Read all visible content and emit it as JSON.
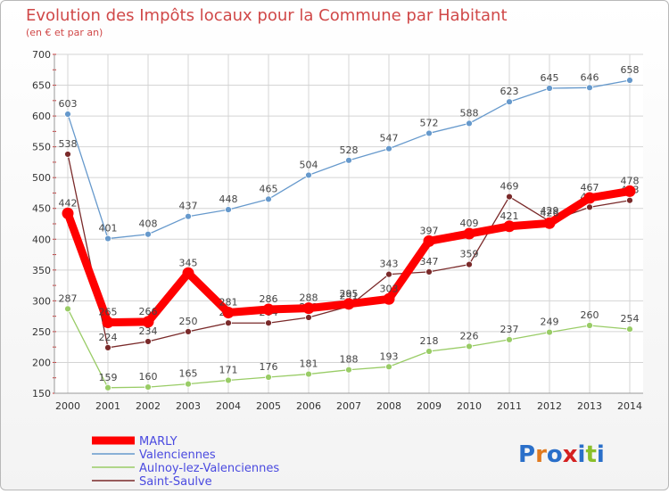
{
  "title": "Evolution des Impôts locaux pour la Commune par Habitant",
  "subtitle": "(en € et par an)",
  "logo_text": "Proxiti",
  "chart_data": {
    "type": "line",
    "x": [
      2000,
      2001,
      2002,
      2003,
      2004,
      2005,
      2006,
      2007,
      2008,
      2009,
      2010,
      2011,
      2012,
      2013,
      2014
    ],
    "ylim": [
      150,
      700
    ],
    "yticks": [
      150,
      200,
      250,
      300,
      350,
      400,
      450,
      500,
      550,
      600,
      650,
      700
    ],
    "grid": true,
    "legend_position": "bottom-left",
    "series": [
      {
        "name": "MARLY",
        "color": "#ff0000",
        "values": [
          442,
          265,
          266,
          345,
          281,
          286,
          288,
          295,
          303,
          397,
          409,
          421,
          426,
          467,
          478
        ]
      },
      {
        "name": "Valenciennes",
        "color": "#6699cc",
        "values": [
          603,
          401,
          408,
          437,
          448,
          465,
          504,
          528,
          547,
          572,
          588,
          623,
          645,
          646,
          658
        ]
      },
      {
        "name": "Aulnoy-lez-Valenciennes",
        "color": "#99cc66",
        "values": [
          287,
          159,
          160,
          165,
          171,
          176,
          181,
          188,
          193,
          218,
          226,
          237,
          249,
          260,
          254
        ]
      },
      {
        "name": "Saint-Saulve",
        "color": "#7a2a2a",
        "values": [
          538,
          224,
          234,
          250,
          264,
          264,
          273,
          291,
          343,
          347,
          359,
          469,
          429,
          452,
          463
        ]
      }
    ]
  }
}
